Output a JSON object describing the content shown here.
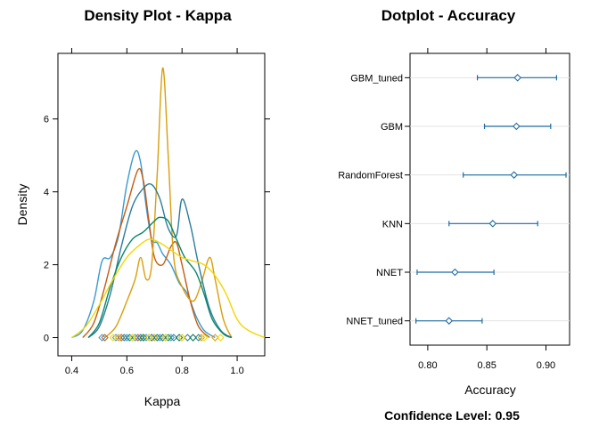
{
  "chart_data": [
    {
      "type": "density",
      "title": "Density Plot - Kappa",
      "xlabel": "Kappa",
      "ylabel": "Density",
      "xlim": [
        0.35,
        1.1
      ],
      "ylim": [
        -0.5,
        7.8
      ],
      "x_ticks": [
        0.4,
        0.6,
        0.8,
        1.0
      ],
      "x_tick_labels": [
        "0.4",
        "0.6",
        "0.8",
        "1.0"
      ],
      "y_ticks": [
        0,
        2,
        4,
        6
      ],
      "y_tick_labels": [
        "0",
        "2",
        "4",
        "6"
      ],
      "series": [
        {
          "color": "#3a9ad0",
          "curve": [
            [
              0.4,
              0.0
            ],
            [
              0.44,
              0.2
            ],
            [
              0.48,
              1.0
            ],
            [
              0.51,
              2.1
            ],
            [
              0.54,
              2.2
            ],
            [
              0.57,
              2.8
            ],
            [
              0.6,
              4.2
            ],
            [
              0.63,
              5.1
            ],
            [
              0.65,
              4.8
            ],
            [
              0.67,
              3.6
            ],
            [
              0.69,
              2.7
            ],
            [
              0.71,
              2.6
            ],
            [
              0.73,
              2.3
            ],
            [
              0.76,
              2.0
            ],
            [
              0.79,
              1.5
            ],
            [
              0.82,
              1.2
            ],
            [
              0.85,
              0.6
            ],
            [
              0.88,
              0.2
            ],
            [
              0.92,
              0.0
            ]
          ],
          "rug": [
            0.51,
            0.56,
            0.6,
            0.63,
            0.65,
            0.67,
            0.69,
            0.72,
            0.76
          ]
        },
        {
          "color": "#c55a11",
          "curve": [
            [
              0.44,
              0.0
            ],
            [
              0.48,
              0.4
            ],
            [
              0.52,
              1.4
            ],
            [
              0.56,
              2.6
            ],
            [
              0.6,
              3.6
            ],
            [
              0.64,
              4.6
            ],
            [
              0.66,
              4.3
            ],
            [
              0.68,
              3.2
            ],
            [
              0.7,
              2.2
            ],
            [
              0.73,
              2.0
            ],
            [
              0.76,
              2.5
            ],
            [
              0.78,
              2.6
            ],
            [
              0.8,
              2.0
            ],
            [
              0.83,
              1.0
            ],
            [
              0.86,
              0.3
            ],
            [
              0.9,
              0.0
            ]
          ],
          "rug": [
            0.52,
            0.58,
            0.64,
            0.66,
            0.68,
            0.73,
            0.79,
            0.84
          ]
        },
        {
          "color": "#d99e0b",
          "curve": [
            [
              0.52,
              0.0
            ],
            [
              0.56,
              0.3
            ],
            [
              0.6,
              1.0
            ],
            [
              0.63,
              1.6
            ],
            [
              0.65,
              2.2
            ],
            [
              0.67,
              1.6
            ],
            [
              0.69,
              2.0
            ],
            [
              0.71,
              4.5
            ],
            [
              0.73,
              7.4
            ],
            [
              0.75,
              5.0
            ],
            [
              0.77,
              2.2
            ],
            [
              0.8,
              1.4
            ],
            [
              0.84,
              1.0
            ],
            [
              0.87,
              1.5
            ],
            [
              0.9,
              2.2
            ],
            [
              0.92,
              1.6
            ],
            [
              0.95,
              0.5
            ],
            [
              0.98,
              0.0
            ]
          ],
          "rug": [
            0.57,
            0.62,
            0.66,
            0.7,
            0.73,
            0.74,
            0.8,
            0.87,
            0.92
          ]
        },
        {
          "color": "#2c7c9c",
          "curve": [
            [
              0.46,
              0.0
            ],
            [
              0.5,
              0.3
            ],
            [
              0.54,
              1.2
            ],
            [
              0.58,
              2.5
            ],
            [
              0.62,
              3.6
            ],
            [
              0.66,
              4.1
            ],
            [
              0.69,
              4.2
            ],
            [
              0.72,
              3.8
            ],
            [
              0.75,
              3.0
            ],
            [
              0.78,
              2.8
            ],
            [
              0.8,
              3.8
            ],
            [
              0.83,
              3.1
            ],
            [
              0.86,
              2.0
            ],
            [
              0.9,
              0.8
            ],
            [
              0.94,
              0.2
            ],
            [
              0.98,
              0.0
            ]
          ],
          "rug": [
            0.59,
            0.65,
            0.69,
            0.73,
            0.77,
            0.82,
            0.86
          ]
        },
        {
          "color": "#08866a",
          "curve": [
            [
              0.46,
              0.0
            ],
            [
              0.5,
              0.4
            ],
            [
              0.54,
              1.4
            ],
            [
              0.58,
              2.2
            ],
            [
              0.62,
              2.7
            ],
            [
              0.66,
              2.9
            ],
            [
              0.7,
              3.2
            ],
            [
              0.72,
              3.3
            ],
            [
              0.75,
              3.2
            ],
            [
              0.78,
              2.7
            ],
            [
              0.81,
              2.2
            ],
            [
              0.85,
              1.8
            ],
            [
              0.88,
              1.2
            ],
            [
              0.91,
              0.5
            ],
            [
              0.95,
              0.1
            ],
            [
              0.98,
              0.0
            ]
          ],
          "rug": [
            0.61,
            0.66,
            0.71,
            0.75,
            0.79,
            0.84
          ]
        },
        {
          "color": "#f2d700",
          "curve": [
            [
              0.4,
              0.0
            ],
            [
              0.45,
              0.3
            ],
            [
              0.5,
              0.9
            ],
            [
              0.55,
              1.6
            ],
            [
              0.6,
              2.2
            ],
            [
              0.64,
              2.5
            ],
            [
              0.68,
              2.7
            ],
            [
              0.72,
              2.6
            ],
            [
              0.76,
              2.4
            ],
            [
              0.8,
              2.2
            ],
            [
              0.84,
              2.1
            ],
            [
              0.88,
              2.0
            ],
            [
              0.92,
              1.7
            ],
            [
              0.96,
              1.2
            ],
            [
              1.0,
              0.5
            ],
            [
              1.04,
              0.2
            ],
            [
              1.1,
              0.0
            ]
          ],
          "rug": [
            0.55,
            0.62,
            0.68,
            0.74,
            0.8,
            0.88,
            0.94
          ]
        }
      ]
    },
    {
      "type": "dotplot",
      "title": "Dotplot - Accuracy",
      "xlabel": "Accuracy",
      "xlim": [
        0.785,
        0.92
      ],
      "x_ticks": [
        0.8,
        0.85,
        0.9
      ],
      "x_tick_labels": [
        "0.80",
        "0.85",
        "0.90"
      ],
      "color": "#1f6ca2",
      "categories": [
        "GBM_tuned",
        "GBM",
        "RandomForest",
        "KNN",
        "NNET",
        "NNET_tuned"
      ],
      "estimates": [
        0.876,
        0.875,
        0.873,
        0.855,
        0.823,
        0.818
      ],
      "lower": [
        0.842,
        0.848,
        0.83,
        0.818,
        0.791,
        0.79
      ],
      "upper": [
        0.909,
        0.904,
        0.917,
        0.893,
        0.856,
        0.846
      ],
      "footnote": "Confidence Level: 0.95"
    }
  ]
}
